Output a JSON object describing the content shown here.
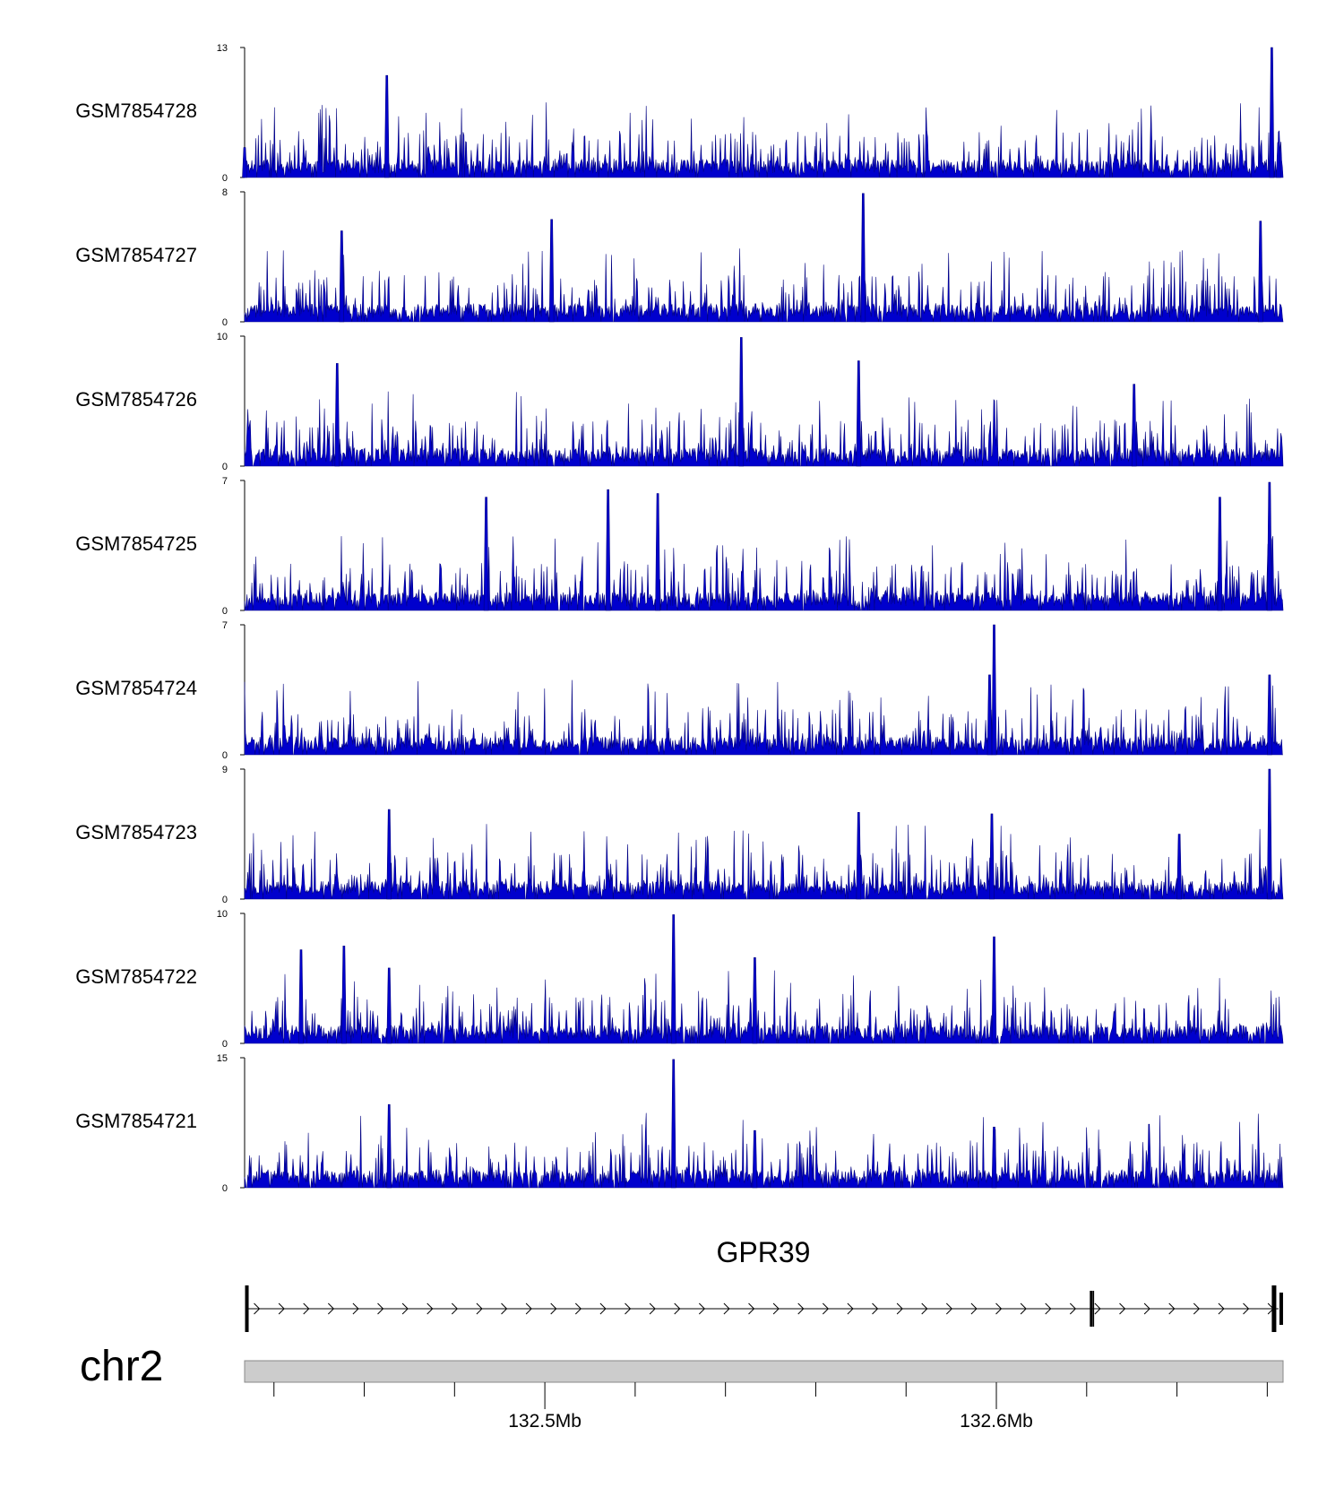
{
  "chart_data": {
    "type": "area",
    "title": "",
    "xlabel": "",
    "ylabel": "",
    "region": {
      "chromosome": "chr2",
      "start": 132.4335,
      "end": 132.6635,
      "unit": "Mb"
    },
    "tracks": [
      {
        "name": "GSM7854728",
        "ymin": 0,
        "ymax": 13,
        "ymin_label": "0",
        "ymax_label": "13",
        "peaks": [
          [
            132.4335,
            3
          ],
          [
            132.465,
            10.2
          ],
          [
            132.661,
            13
          ],
          [
            132.6625,
            3.5
          ]
        ]
      },
      {
        "name": "GSM7854727",
        "ymin": 0,
        "ymax": 8,
        "ymin_label": "0",
        "ymax_label": "8",
        "peaks": [
          [
            132.455,
            5.6
          ],
          [
            132.5015,
            6.3
          ],
          [
            132.5705,
            7.9
          ],
          [
            132.6585,
            6.2
          ]
        ]
      },
      {
        "name": "GSM7854726",
        "ymin": 0,
        "ymax": 10,
        "ymin_label": "0",
        "ymax_label": "10",
        "peaks": [
          [
            132.454,
            7.9
          ],
          [
            132.5435,
            9.9
          ],
          [
            132.5695,
            8.1
          ],
          [
            132.6305,
            6.3
          ]
        ]
      },
      {
        "name": "GSM7854725",
        "ymin": 0,
        "ymax": 7,
        "ymin_label": "0",
        "ymax_label": "7",
        "peaks": [
          [
            132.487,
            6.1
          ],
          [
            132.514,
            6.5
          ],
          [
            132.525,
            6.3
          ],
          [
            132.6495,
            6.1
          ],
          [
            132.6605,
            6.9
          ]
        ]
      },
      {
        "name": "GSM7854724",
        "ymin": 0,
        "ymax": 7,
        "ymin_label": "0",
        "ymax_label": "7",
        "peaks": [
          [
            132.5995,
            7.0
          ],
          [
            132.5985,
            4.3
          ],
          [
            132.6605,
            4.3
          ]
        ]
      },
      {
        "name": "GSM7854723",
        "ymin": 0,
        "ymax": 9,
        "ymin_label": "0",
        "ymax_label": "9",
        "peaks": [
          [
            132.4655,
            6.2
          ],
          [
            132.5695,
            6.0
          ],
          [
            132.599,
            5.9
          ],
          [
            132.6405,
            4.5
          ],
          [
            132.6605,
            9.0
          ]
        ]
      },
      {
        "name": "GSM7854722",
        "ymin": 0,
        "ymax": 10,
        "ymin_label": "0",
        "ymax_label": "10",
        "peaks": [
          [
            132.446,
            7.2
          ],
          [
            132.4555,
            7.5
          ],
          [
            132.4655,
            5.8
          ],
          [
            132.5285,
            9.9
          ],
          [
            132.5465,
            6.6
          ],
          [
            132.5995,
            8.2
          ]
        ]
      },
      {
        "name": "GSM7854721",
        "ymin": 0,
        "ymax": 15,
        "ymin_label": "0",
        "ymax_label": "15",
        "peaks": [
          [
            132.4655,
            9.6
          ],
          [
            132.5285,
            14.8
          ],
          [
            132.5465,
            6.6
          ],
          [
            132.5995,
            7.0
          ]
        ]
      }
    ],
    "gene": {
      "name": "GPR39",
      "strand": "+",
      "start": 132.434,
      "end": 132.6625,
      "exons": [
        132.434,
        132.621,
        132.6215,
        132.6615
      ]
    },
    "chromosome_label": "chr2",
    "axis": {
      "major_ticks": [
        132.5,
        132.6
      ],
      "major_tick_labels": [
        "132.5Mb",
        "132.6Mb"
      ],
      "minor_ticks": [
        132.44,
        132.46,
        132.48,
        132.52,
        132.54,
        132.56,
        132.58,
        132.62,
        132.64,
        132.66
      ]
    },
    "colors": {
      "signal": "#0000cd",
      "signal_stroke": "#000080",
      "ideogram": "#cccccc"
    }
  }
}
